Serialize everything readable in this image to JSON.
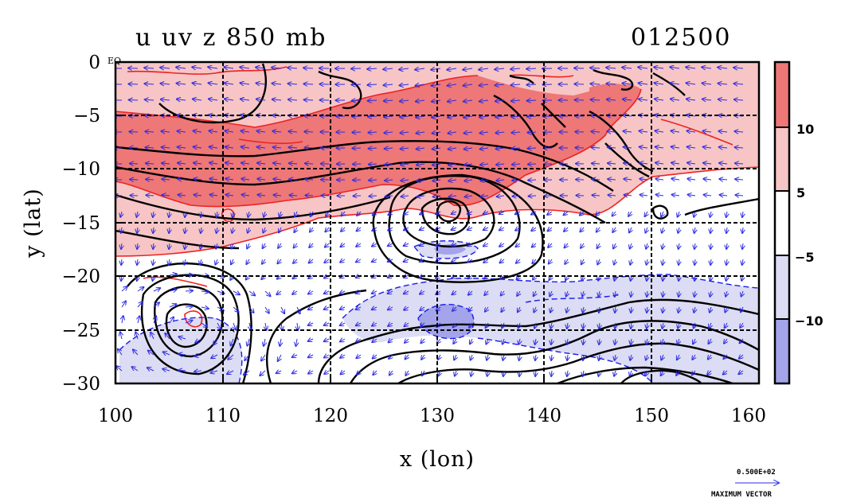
{
  "title": {
    "left": "u uv z 850 mb",
    "right": "012500"
  },
  "axes": {
    "xlabel": "x (lon)",
    "ylabel": "y (lat)",
    "xticks": [
      "100",
      "110",
      "120",
      "130",
      "140",
      "150",
      "160"
    ],
    "yticks": [
      "0",
      "−5",
      "−10",
      "−15",
      "−20",
      "−25",
      "−30"
    ],
    "equator_label": "EQ"
  },
  "colorbar": {
    "labels": [
      "10",
      "5",
      "−5",
      "−10"
    ],
    "colors": [
      "#ee7777",
      "#f7c5c5",
      "#ffffff",
      "#dcdcf4",
      "#a4a4ea"
    ]
  },
  "vector_legend": {
    "value": "0.500E+02",
    "caption": "MAXIMUM VECTOR"
  },
  "colors": {
    "positive_contour": "#ee2222",
    "negative_contour": "#1a1aee",
    "height_contour": "#000000",
    "vectors": "#2c2ce0",
    "grid": "#000000"
  },
  "chart_data": {
    "type": "heatmap",
    "title": "u uv z 850 mb",
    "time": "012500",
    "xlabel": "x (lon)",
    "ylabel": "y (lat)",
    "xlim": [
      100,
      160
    ],
    "ylim": [
      -30,
      0
    ],
    "x_ticks": [
      100,
      110,
      120,
      130,
      140,
      150,
      160
    ],
    "y_ticks": [
      0,
      -5,
      -10,
      -15,
      -20,
      -25,
      -30
    ],
    "grid": true,
    "shading_levels": [
      -10,
      -5,
      5,
      10
    ],
    "fields": {
      "shaded": "u",
      "vectors": "uv",
      "contours": "z"
    },
    "max_vector": 50,
    "legend_position": "right"
  }
}
